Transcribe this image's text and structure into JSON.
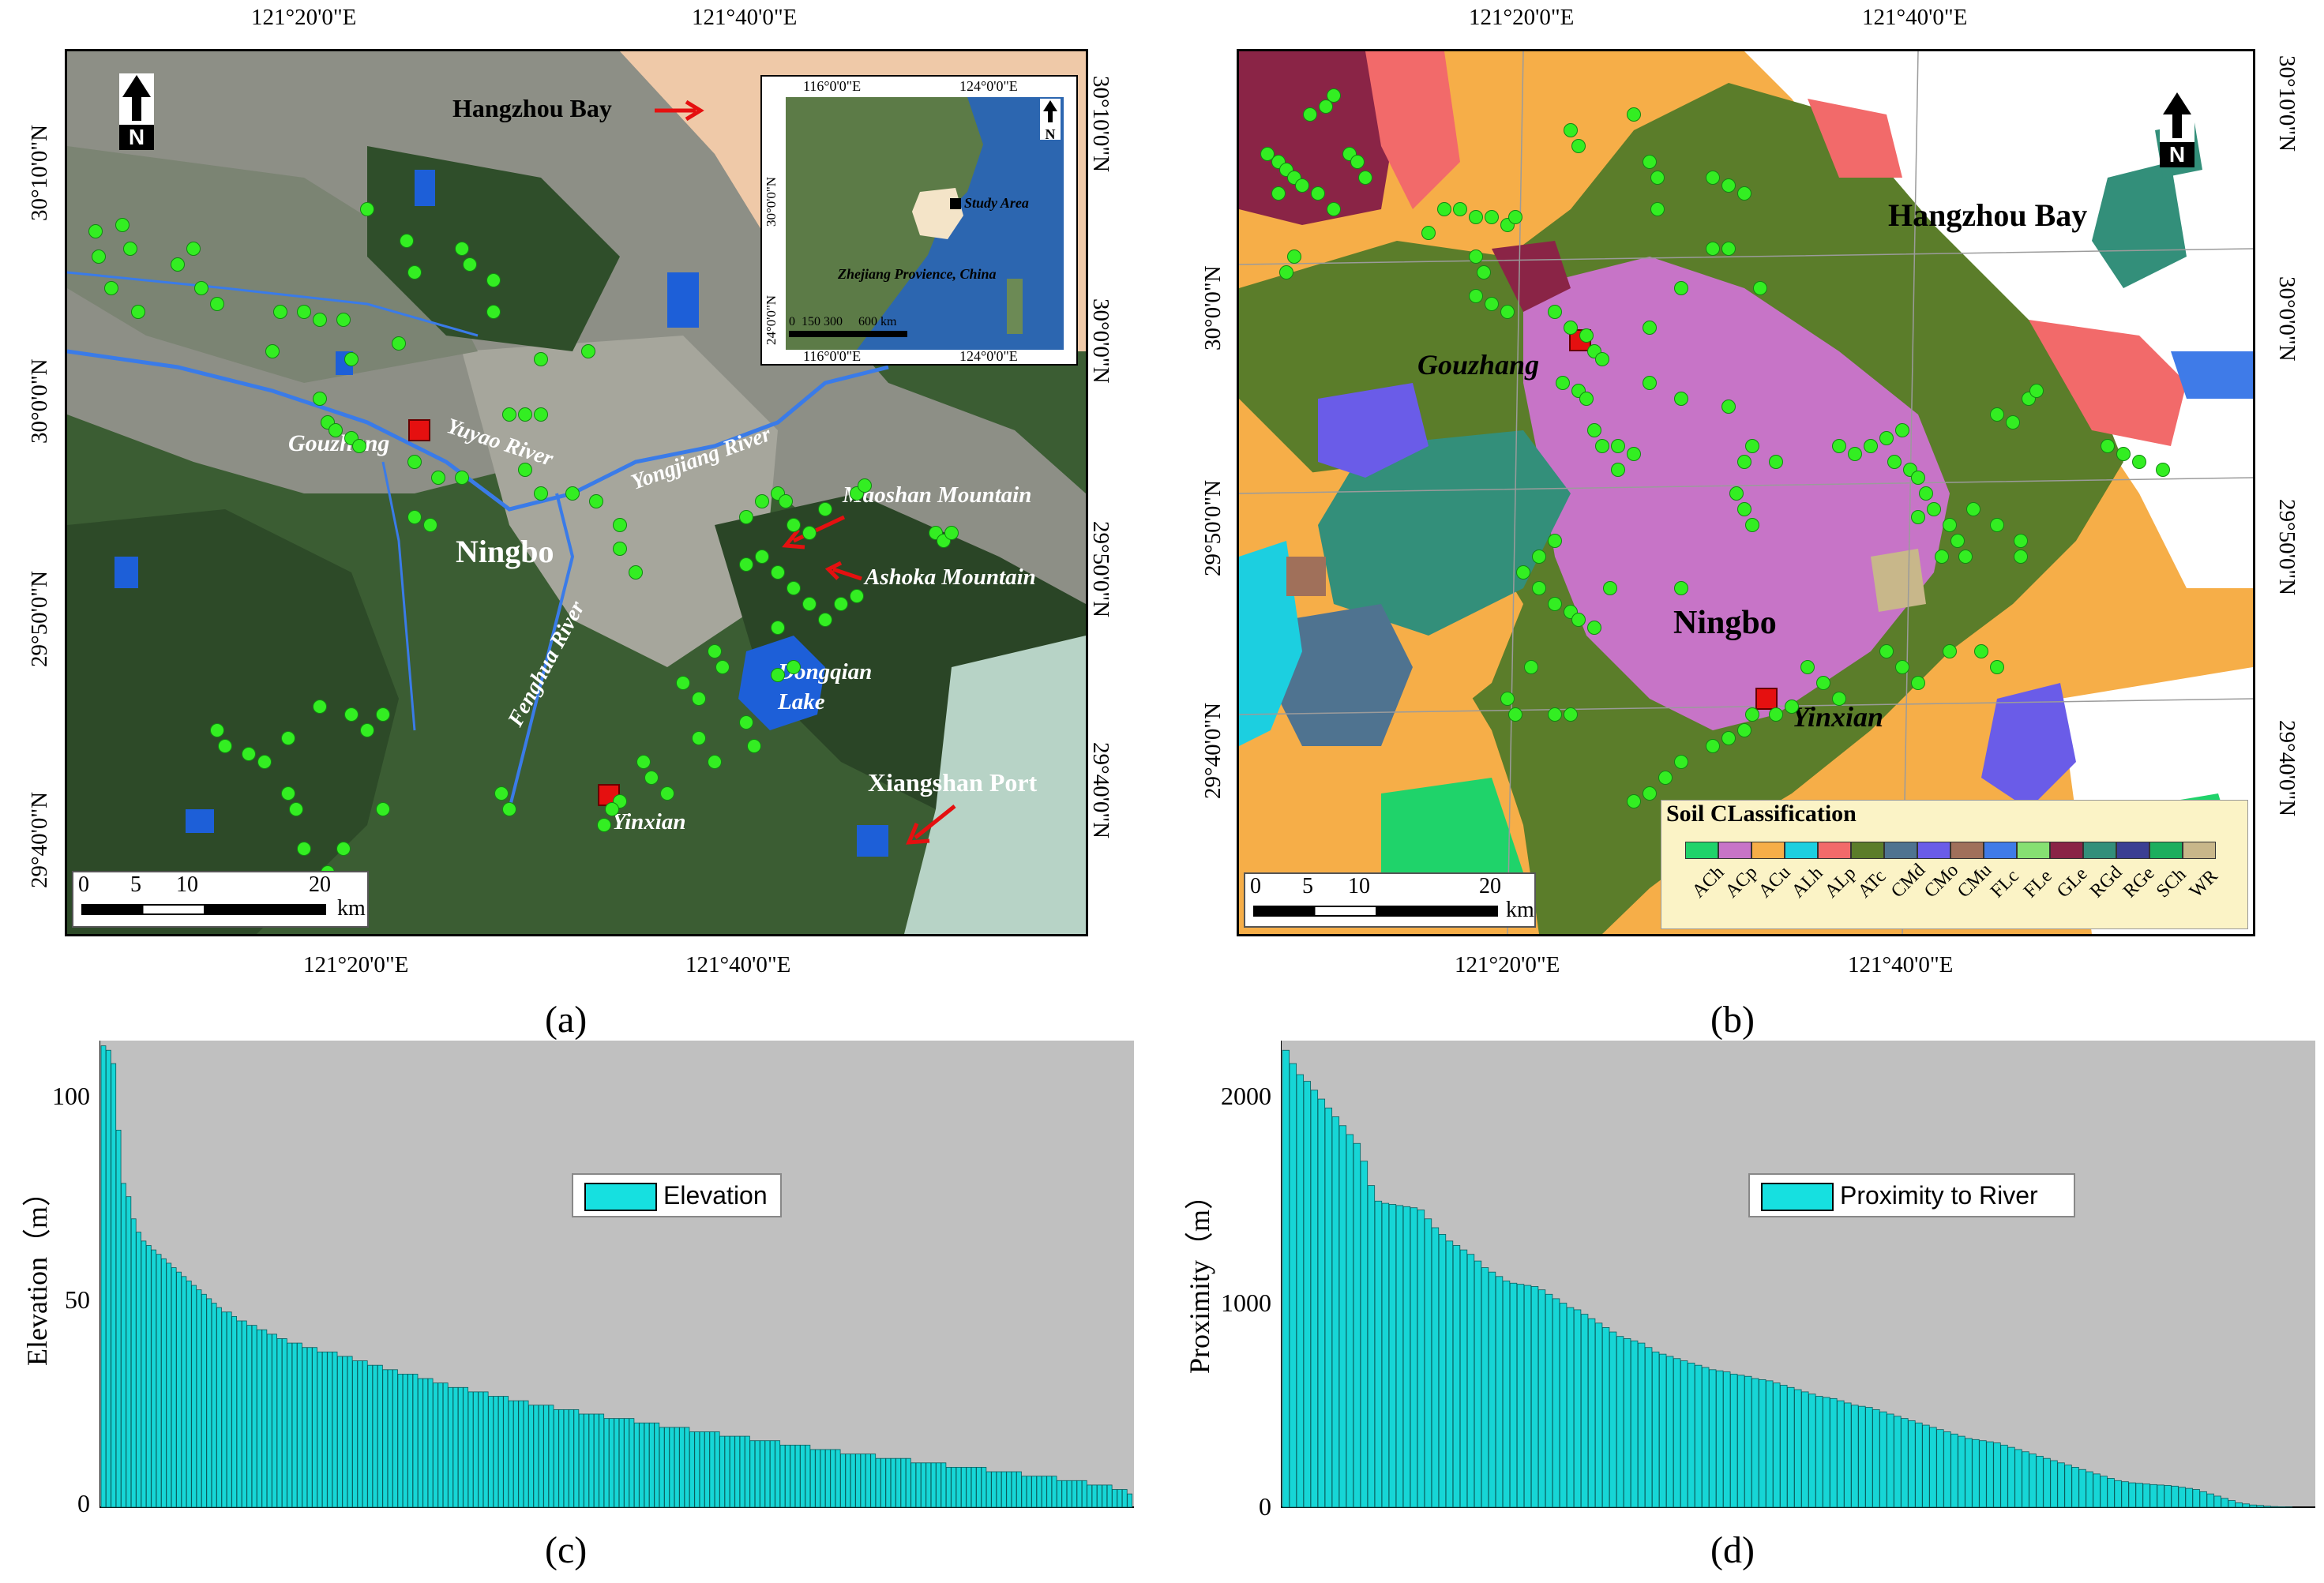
{
  "panel_a": {
    "label": "(a)",
    "top_coords": [
      "121°20'0\"E",
      "121°40'0\"E"
    ],
    "bottom_coords": [
      "121°20'0\"E",
      "121°40'0\"E"
    ],
    "left_coords": [
      "30°10'0\"N",
      "30°0'0\"N",
      "29°50'0\"N",
      "29°40'0\"N"
    ],
    "right_coords": [
      "30°10'0\"N",
      "30°0'0\"N",
      "29°50'0\"N",
      "29°40'0\"N"
    ],
    "north_label": "N",
    "places": {
      "hangzhou_bay": "Hangzhou Bay",
      "gouzhang": "Gouzhang",
      "yuyao_river": "Yuyao River",
      "yongjiang_river": "Yongjiang River",
      "maoshan_mountain": "Maoshan Mountain",
      "ashoka_mountain": "Ashoka Mountain",
      "ningbo": "Ningbo",
      "fenghua_river": "Fenghua River",
      "dongqian_lake_1": "Dongqian",
      "dongqian_lake_2": "Lake",
      "xiangshan_port": "Xiangshan Port",
      "yinxian": "Yinxian"
    },
    "scale": {
      "ticks": [
        "0",
        "5",
        "10",
        "20"
      ],
      "unit": "km"
    },
    "inset": {
      "top_coords": [
        "116°0'0\"E",
        "124°0'0\"E"
      ],
      "bottom_coords": [
        "116°0'0\"E",
        "124°0'0\"E"
      ],
      "left_coords": [
        "30°0'0\"N",
        "24°0'0\"N"
      ],
      "study_area": "Study Area",
      "province": "Zhejiang Provience, China",
      "scale_ticks": [
        "0",
        "150 300",
        "600"
      ],
      "scale_unit": "km",
      "north_label": "N"
    },
    "colors": {
      "water": "#1d5fd8",
      "sea": "#efc9a8",
      "sample": "#33ee22",
      "marker": "#e51010"
    }
  },
  "panel_b": {
    "label": "(b)",
    "top_coords": [
      "121°20'0\"E",
      "121°40'0\"E"
    ],
    "bottom_coords": [
      "121°20'0\"E",
      "121°40'0\"E"
    ],
    "left_coords": [
      "30°0'0\"N",
      "29°50'0\"N",
      "29°40'0\"N"
    ],
    "right_coords": [
      "30°10'0\"N",
      "30°0'0\"N",
      "29°50'0\"N",
      "29°40'0\"N"
    ],
    "north_label": "N",
    "places": {
      "hangzhou_bay": "Hangzhou Bay",
      "gouzhang": "Gouzhang",
      "ningbo": "Ningbo",
      "yinxian": "Yinxian"
    },
    "scale": {
      "ticks": [
        "0",
        "5",
        "10",
        "20"
      ],
      "unit": "km"
    },
    "legend_title": "Soil CLassification",
    "legend_items": [
      {
        "code": "ACh",
        "color": "#1fd36a"
      },
      {
        "code": "ACp",
        "color": "#c774c7"
      },
      {
        "code": "ACu",
        "color": "#f6ae48"
      },
      {
        "code": "ALh",
        "color": "#1ccfe0"
      },
      {
        "code": "ALp",
        "color": "#f26a6a"
      },
      {
        "code": "ATc",
        "color": "#5b7d2a"
      },
      {
        "code": "CMd",
        "color": "#4f7390"
      },
      {
        "code": "CMo",
        "color": "#6a5ce8"
      },
      {
        "code": "CMu",
        "color": "#a0705a"
      },
      {
        "code": "FLc",
        "color": "#3f7be8"
      },
      {
        "code": "FLe",
        "color": "#86e072"
      },
      {
        "code": "GLe",
        "color": "#8a2446"
      },
      {
        "code": "RGd",
        "color": "#338f7a"
      },
      {
        "code": "RGe",
        "color": "#3b3f93"
      },
      {
        "code": "SCh",
        "color": "#1cae5e"
      },
      {
        "code": "WR",
        "color": "#c8b78a"
      }
    ]
  },
  "panel_c": {
    "label": "(c)",
    "ylabel": "Elevation（m）",
    "legend": "Elevation",
    "yticks": [
      "0",
      "50",
      "100"
    ],
    "ylim": [
      0,
      105
    ]
  },
  "panel_d": {
    "label": "(d)",
    "ylabel": "Proximity（m）",
    "legend": "Proximity to River",
    "yticks": [
      "0",
      "1000",
      "2000"
    ],
    "ylim": [
      0,
      2100
    ]
  },
  "chart_data": [
    {
      "type": "bar",
      "ylabel": "Elevation（m）",
      "ylim": [
        0,
        105
      ],
      "series": [
        {
          "name": "Elevation",
          "values": [
            104,
            103,
            100,
            85,
            73,
            70,
            65,
            62,
            60,
            59,
            58,
            57,
            56,
            55,
            54,
            53,
            52,
            51,
            50,
            49,
            48,
            47,
            46,
            45,
            44,
            44,
            43,
            42,
            42,
            41,
            41,
            40,
            40,
            39,
            39,
            38,
            38,
            37,
            37,
            37,
            36,
            36,
            36,
            35,
            35,
            35,
            35,
            34,
            34,
            34,
            33,
            33,
            33,
            32,
            32,
            32,
            31,
            31,
            31,
            30,
            30,
            30,
            30,
            29,
            29,
            29,
            28,
            28,
            28,
            27,
            27,
            27,
            27,
            26,
            26,
            26,
            26,
            25,
            25,
            25,
            25,
            24,
            24,
            24,
            24,
            23,
            23,
            23,
            23,
            23,
            22,
            22,
            22,
            22,
            22,
            21,
            21,
            21,
            21,
            21,
            20,
            20,
            20,
            20,
            20,
            20,
            19,
            19,
            19,
            19,
            19,
            18,
            18,
            18,
            18,
            18,
            18,
            17,
            17,
            17,
            17,
            17,
            17,
            16,
            16,
            16,
            16,
            16,
            16,
            15,
            15,
            15,
            15,
            15,
            15,
            14,
            14,
            14,
            14,
            14,
            14,
            13,
            13,
            13,
            13,
            13,
            13,
            12,
            12,
            12,
            12,
            12,
            12,
            12,
            11,
            11,
            11,
            11,
            11,
            11,
            11,
            10,
            10,
            10,
            10,
            10,
            10,
            10,
            9,
            9,
            9,
            9,
            9,
            9,
            9,
            9,
            8,
            8,
            8,
            8,
            8,
            8,
            8,
            7,
            7,
            7,
            7,
            7,
            7,
            7,
            6,
            6,
            6,
            6,
            6,
            6,
            5,
            5,
            5,
            5,
            5,
            4,
            4,
            4,
            3
          ]
        }
      ]
    },
    {
      "type": "bar",
      "ylabel": "Proximity（m）",
      "ylim": [
        0,
        2100
      ],
      "series": [
        {
          "name": "Proximity to River",
          "values": [
            2060,
            2000,
            1950,
            1920,
            1880,
            1840,
            1800,
            1760,
            1720,
            1680,
            1640,
            1560,
            1450,
            1380,
            1370,
            1365,
            1360,
            1355,
            1350,
            1340,
            1300,
            1260,
            1230,
            1200,
            1180,
            1160,
            1140,
            1110,
            1080,
            1060,
            1040,
            1020,
            1010,
            1005,
            1000,
            995,
            980,
            960,
            940,
            920,
            900,
            890,
            870,
            850,
            830,
            810,
            790,
            770,
            760,
            750,
            740,
            720,
            700,
            690,
            680,
            670,
            660,
            650,
            640,
            630,
            620,
            615,
            610,
            600,
            595,
            590,
            580,
            575,
            570,
            560,
            550,
            540,
            530,
            520,
            510,
            500,
            495,
            490,
            480,
            470,
            460,
            455,
            450,
            440,
            430,
            420,
            410,
            400,
            390,
            380,
            370,
            360,
            350,
            340,
            330,
            320,
            310,
            305,
            300,
            295,
            290,
            280,
            270,
            260,
            250,
            240,
            230,
            220,
            210,
            200,
            190,
            180,
            170,
            160,
            150,
            140,
            130,
            120,
            115,
            110,
            108,
            105,
            102,
            100,
            98,
            95,
            90,
            85,
            80,
            70,
            60,
            50,
            40,
            30,
            20,
            15,
            10,
            8,
            5,
            3,
            2,
            1,
            0,
            0,
            0
          ]
        }
      ]
    }
  ]
}
